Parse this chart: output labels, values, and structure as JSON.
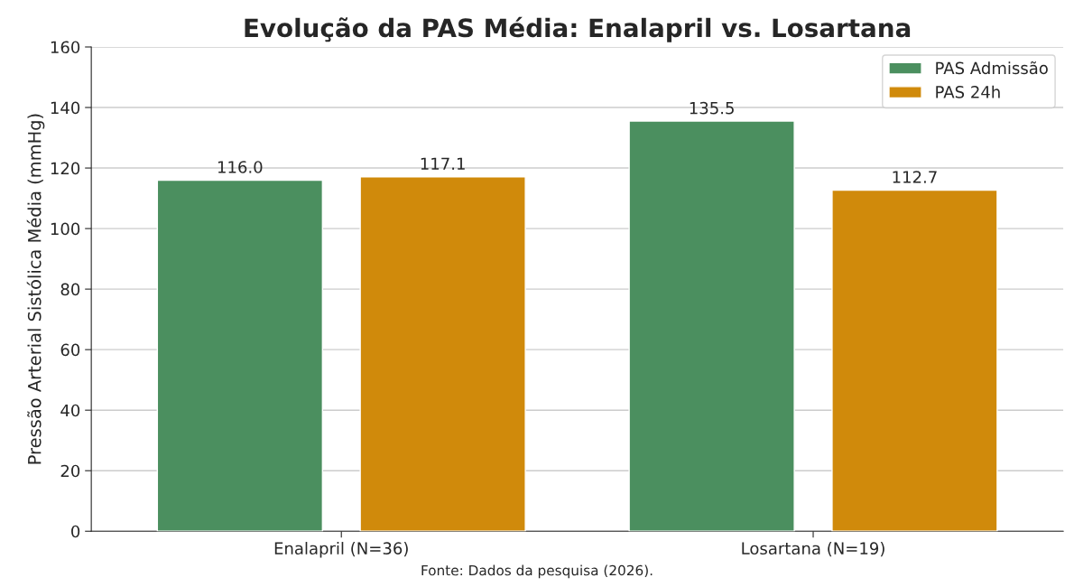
{
  "chart_data": {
    "type": "bar",
    "title": "Evolução da PAS Média: Enalapril vs. Losartana",
    "ylabel": "Pressão Arterial Sistólica Média (mmHg)",
    "categories": [
      "Enalapril (N=36)",
      "Losartana (N=19)"
    ],
    "series": [
      {
        "name": "PAS Admissão",
        "color": "#4b8f5f",
        "values": [
          116.0,
          135.5
        ],
        "value_labels": [
          "116.0",
          "135.5"
        ]
      },
      {
        "name": "PAS 24h",
        "color": "#d08a0b",
        "values": [
          117.1,
          112.7
        ],
        "value_labels": [
          "117.1",
          "112.7"
        ]
      }
    ],
    "ylim": [
      0,
      160
    ],
    "yticks": [
      0,
      20,
      40,
      60,
      80,
      100,
      120,
      140,
      160
    ],
    "grid": "y",
    "legend": "top right",
    "annotations": [
      "Fonte: Dados da pesquisa (2026)."
    ]
  }
}
